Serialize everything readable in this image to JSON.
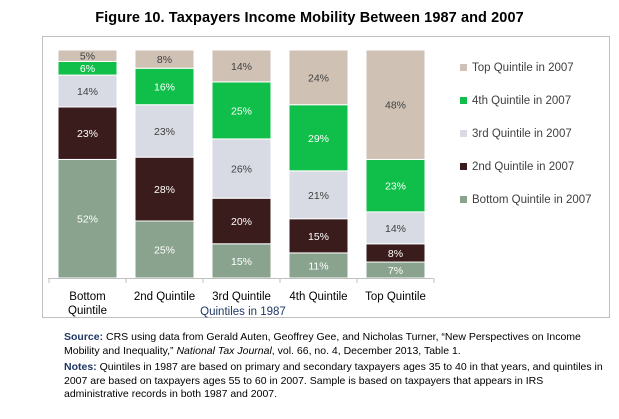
{
  "title": "Figure 10. Taxpayers Income Mobility Between 1987 and 2007",
  "chart_data": {
    "type": "bar",
    "stacked": true,
    "categories": [
      "Bottom Quintile",
      "2nd Quintile",
      "3rd Quintile",
      "4th Quintile",
      "Top Quintile"
    ],
    "xlabel": "Quintiles in 1987",
    "ylabel": "",
    "ylim": [
      0,
      100
    ],
    "grid": false,
    "legend_position": "right",
    "series": [
      {
        "name": "Bottom Quintile in 2007",
        "color": "#8aa38e",
        "values": [
          52,
          25,
          15,
          11,
          7
        ]
      },
      {
        "name": "2nd Quintile in 2007",
        "color": "#3b1c1c",
        "values": [
          23,
          28,
          20,
          15,
          8
        ]
      },
      {
        "name": "3rd Quintile in 2007",
        "color": "#d8dbe4",
        "values": [
          14,
          23,
          26,
          21,
          14
        ]
      },
      {
        "name": "4th Quintile in 2007",
        "color": "#0fbf4a",
        "values": [
          6,
          16,
          25,
          29,
          23
        ]
      },
      {
        "name": "Top Quintile in 2007",
        "color": "#cfc2b5",
        "values": [
          5,
          8,
          14,
          24,
          48
        ]
      }
    ],
    "legend_order": [
      "Top Quintile in 2007",
      "4th Quintile in 2007",
      "3rd Quintile in 2007",
      "2nd Quintile in 2007",
      "Bottom Quintile in 2007"
    ]
  },
  "notes": {
    "source_label": "Source:",
    "source_text": "CRS using data from Gerald Auten, Geoffrey Gee, and Nicholas Turner, “New Perspectives on Income Mobility and Inequality,”",
    "source_journal": "National Tax Journal",
    "source_rest": ", vol. 66, no. 4, December 2013, Table 1.",
    "notes_label": "Notes:",
    "notes_text": "Quintiles in 1987 are based on primary and secondary taxpayers ages 35 to 40 in that years, and quintiles in 2007 are based on taxpayers ages 55 to 60 in 2007. Sample is based on taxpayers that appears in IRS administrative records in both 1987 and 2007."
  }
}
